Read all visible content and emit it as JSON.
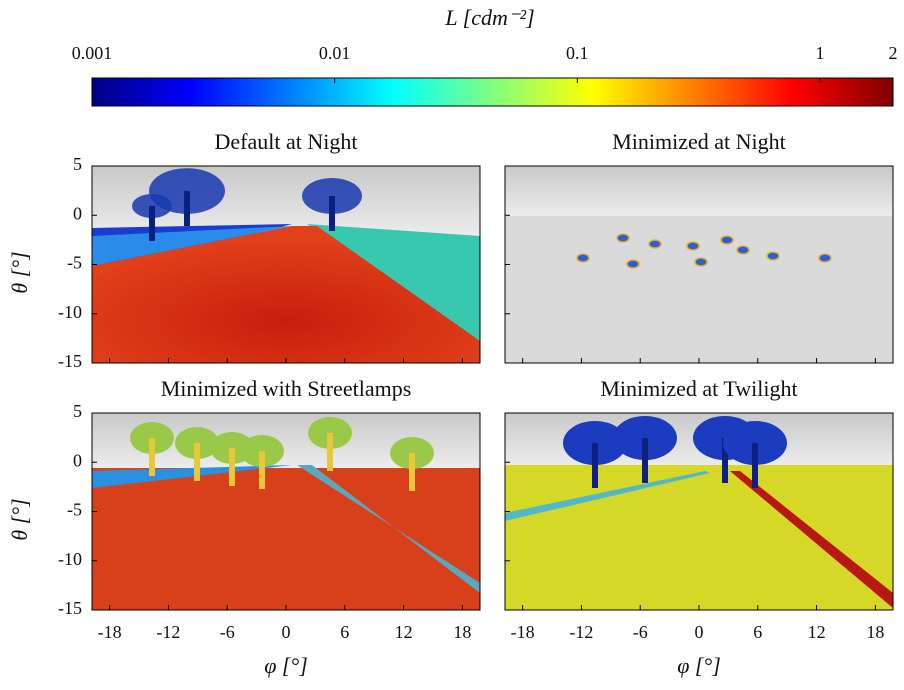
{
  "chart_data": [
    {
      "type": "colorbar",
      "label": "L [cdm⁻²]",
      "scale": "log",
      "colormap": "jet",
      "lim": [
        0.001,
        2
      ],
      "ticks": [
        0.001,
        0.01,
        0.1,
        1,
        2
      ]
    },
    {
      "type": "image",
      "title": "Default at Night",
      "xlim": [
        -19.8,
        19.8
      ],
      "xticks": [
        -18,
        -12,
        -6,
        0,
        6,
        12,
        18
      ],
      "ylim": [
        -15,
        5
      ],
      "yticks": [
        5,
        0,
        -5,
        -10,
        -15
      ],
      "ylabel": "θ [°]"
    },
    {
      "type": "image",
      "title": "Minimized at Night",
      "xlim": [
        -19.8,
        19.8
      ],
      "xticks": [
        -18,
        -12,
        -6,
        0,
        6,
        12,
        18
      ],
      "ylim": [
        -15,
        5
      ],
      "yticks": [
        5,
        0,
        -5,
        -10,
        -15
      ]
    },
    {
      "type": "image",
      "title": "Minimized with Streetlamps",
      "xlim": [
        -19.8,
        19.8
      ],
      "xticks": [
        -18,
        -12,
        -6,
        0,
        6,
        12,
        18
      ],
      "ylim": [
        -15,
        5
      ],
      "yticks": [
        5,
        0,
        -5,
        -10,
        -15
      ],
      "ylabel": "θ [°]",
      "xlabel": "φ [°]"
    },
    {
      "type": "image",
      "title": "Minimized at Twilight",
      "xlim": [
        -19.8,
        19.8
      ],
      "xticks": [
        -18,
        -12,
        -6,
        0,
        6,
        12,
        18
      ],
      "ylim": [
        -15,
        5
      ],
      "yticks": [
        5,
        0,
        -5,
        -10,
        -15
      ],
      "xlabel": "φ [°]"
    }
  ]
}
